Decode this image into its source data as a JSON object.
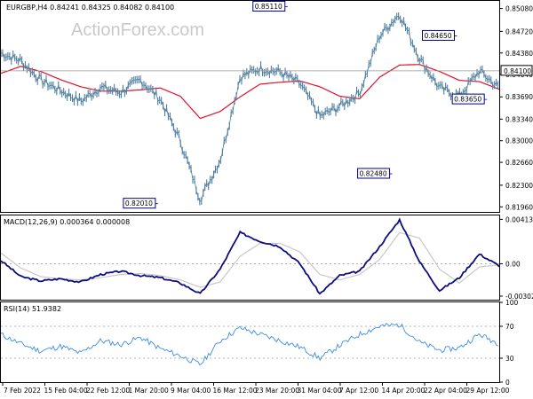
{
  "watermark": "ActionForex.com",
  "colors": {
    "price": "#4f7f9f",
    "ma": "#e0102a",
    "macd": "#0d0d80",
    "signal": "#c8c8c8",
    "rsi": "#3a8de6",
    "grid": "#9a9a9a",
    "box": "#000080",
    "current_box": "#000000"
  },
  "chart_data": [
    {
      "panel": "price",
      "type": "line",
      "title": "EURGBP,H4  0.84241 0.84325 0.84082 0.84100",
      "ylim": [
        0.8188,
        0.852
      ],
      "yticks": [
        "0.85080",
        "0.84720",
        "0.84380",
        "0.84040",
        "0.83690",
        "0.83340",
        "0.83000",
        "0.82660",
        "0.82300",
        "0.81960"
      ],
      "current_price": "0.84100",
      "annotations": [
        "0.85110",
        "0.84650",
        "0.83650",
        "0.82480",
        "0.82010"
      ],
      "x": [
        0,
        4,
        8,
        12,
        16,
        20,
        24,
        28,
        32,
        36,
        40,
        44,
        48,
        52,
        56,
        60,
        64,
        68,
        72,
        76,
        80,
        84,
        88,
        92,
        96,
        100
      ],
      "series": [
        {
          "values": [
            0.8438,
            0.8426,
            0.8395,
            0.8379,
            0.8362,
            0.8384,
            0.8376,
            0.8396,
            0.8365,
            0.83,
            0.8208,
            0.827,
            0.84,
            0.8414,
            0.8408,
            0.839,
            0.8338,
            0.8354,
            0.8376,
            0.8465,
            0.85,
            0.843,
            0.8383,
            0.837,
            0.841,
            0.8383
          ]
        },
        {
          "values": [
            0.8406,
            0.8417,
            0.8409,
            0.8396,
            0.8385,
            0.8378,
            0.8378,
            0.838,
            0.8383,
            0.837,
            0.8335,
            0.8346,
            0.8369,
            0.8389,
            0.8392,
            0.8394,
            0.8385,
            0.837,
            0.8366,
            0.84,
            0.8419,
            0.842,
            0.8409,
            0.8395,
            0.8393,
            0.8381
          ]
        }
      ]
    },
    {
      "panel": "macd",
      "type": "line",
      "title": "MACD(12,26,9) 0.000364 0.000008",
      "ylim": [
        -0.00335,
        0.0045
      ],
      "yticks": [
        "0.004138",
        "0.00",
        "-0.00302"
      ],
      "x": [
        0,
        4,
        8,
        12,
        16,
        20,
        24,
        28,
        32,
        36,
        40,
        44,
        48,
        52,
        56,
        60,
        64,
        68,
        72,
        76,
        80,
        84,
        88,
        92,
        96,
        100
      ],
      "series": [
        {
          "values": [
            0.0003,
            -0.0012,
            -0.0016,
            -0.0014,
            -0.0017,
            -0.001,
            -0.0007,
            -0.0011,
            -0.0013,
            -0.0018,
            -0.0028,
            -0.0005,
            0.0029,
            0.0021,
            0.0016,
            0.0,
            -0.0028,
            -0.0011,
            -0.0007,
            0.0016,
            0.0041,
            0.0002,
            -0.0025,
            -0.0013,
            0.0009,
            -0.0002
          ]
        },
        {
          "values": [
            0.001,
            -0.0004,
            -0.0012,
            -0.0014,
            -0.0015,
            -0.0013,
            -0.001,
            -0.0009,
            -0.0011,
            -0.0015,
            -0.0022,
            -0.0017,
            0.0007,
            0.0019,
            0.0019,
            0.0011,
            -0.001,
            -0.0015,
            -0.001,
            0.0004,
            0.0029,
            0.0024,
            -0.0005,
            -0.0018,
            -0.0003,
            -0.0001
          ]
        }
      ]
    },
    {
      "panel": "rsi",
      "type": "line",
      "title": "RSI(14) 51.9382",
      "ylim": [
        0,
        100
      ],
      "yticks": [
        "100",
        "70",
        "30",
        "0"
      ],
      "x": [
        0,
        4,
        8,
        12,
        16,
        20,
        24,
        28,
        32,
        36,
        40,
        44,
        48,
        52,
        56,
        60,
        64,
        68,
        72,
        76,
        80,
        84,
        88,
        92,
        96,
        100
      ],
      "series": [
        {
          "values": [
            60,
            48,
            39,
            45,
            36,
            52,
            47,
            56,
            42,
            33,
            22,
            52,
            68,
            60,
            52,
            44,
            30,
            46,
            60,
            70,
            72,
            50,
            40,
            43,
            60,
            48
          ]
        }
      ]
    }
  ],
  "x_tick_labels": [
    "7 Feb 2022",
    "15 Feb 04:00",
    "22 Feb 12:00",
    "1 Mar 20:00",
    "9 Mar 04:00",
    "16 Mar 12:00",
    "23 Mar 20:00",
    "31 Mar 04:00",
    "7 Apr 12:00",
    "14 Apr 20:00",
    "22 Apr 04:00",
    "29 Apr 12:00"
  ]
}
